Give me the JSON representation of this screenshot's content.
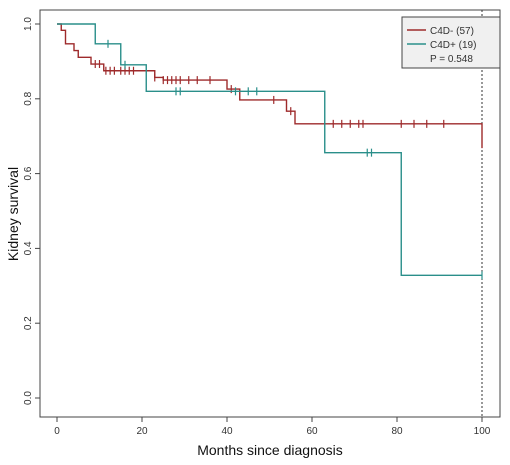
{
  "chart_data": {
    "type": "line",
    "subtype": "kaplan-meier-step",
    "title": "",
    "xlabel": "Months since diagnosis",
    "ylabel": "Kidney survival",
    "xlim": [
      0,
      100
    ],
    "ylim": [
      0.0,
      1.0
    ],
    "x_ticks": [
      "0",
      "20",
      "40",
      "60",
      "80",
      "100"
    ],
    "y_ticks": [
      "0.0",
      "0.2",
      "0.4",
      "0.6",
      "0.8",
      "1.0"
    ],
    "grid": false,
    "legend_position": "top-right",
    "reference_line_x": 100,
    "pvalue_label": "P = 0.548",
    "series": [
      {
        "name": "C4D- (57)",
        "color": "#9e2a2b",
        "steps": [
          [
            0,
            1.0
          ],
          [
            1,
            0.983
          ],
          [
            2,
            0.947
          ],
          [
            4,
            0.929
          ],
          [
            5,
            0.911
          ],
          [
            8,
            0.893
          ],
          [
            11,
            0.875
          ],
          [
            23,
            0.857
          ],
          [
            25,
            0.85
          ],
          [
            40,
            0.826
          ],
          [
            43,
            0.797
          ],
          [
            54,
            0.767
          ],
          [
            55,
            0.767
          ],
          [
            56,
            0.733
          ],
          [
            100,
            0.733
          ],
          [
            100,
            0.668
          ]
        ],
        "censor_x": [
          9,
          10,
          11.5,
          12.5,
          13.5,
          15,
          16,
          17,
          18,
          23,
          25,
          26,
          27,
          28,
          29,
          31,
          33,
          36,
          41,
          51,
          55,
          65,
          67,
          69,
          71,
          72,
          81,
          84,
          87,
          91
        ]
      },
      {
        "name": "C4D+ (19)",
        "color": "#2a8f8a",
        "steps": [
          [
            0,
            1.0
          ],
          [
            9,
            0.947
          ],
          [
            15,
            0.891
          ],
          [
            21,
            0.82
          ],
          [
            63,
            0.82
          ],
          [
            63,
            0.656
          ],
          [
            81,
            0.656
          ],
          [
            81,
            0.328
          ],
          [
            100,
            0.328
          ]
        ],
        "censor_x": [
          12,
          16,
          28,
          29,
          42,
          45,
          47,
          73,
          74,
          100
        ]
      }
    ]
  }
}
